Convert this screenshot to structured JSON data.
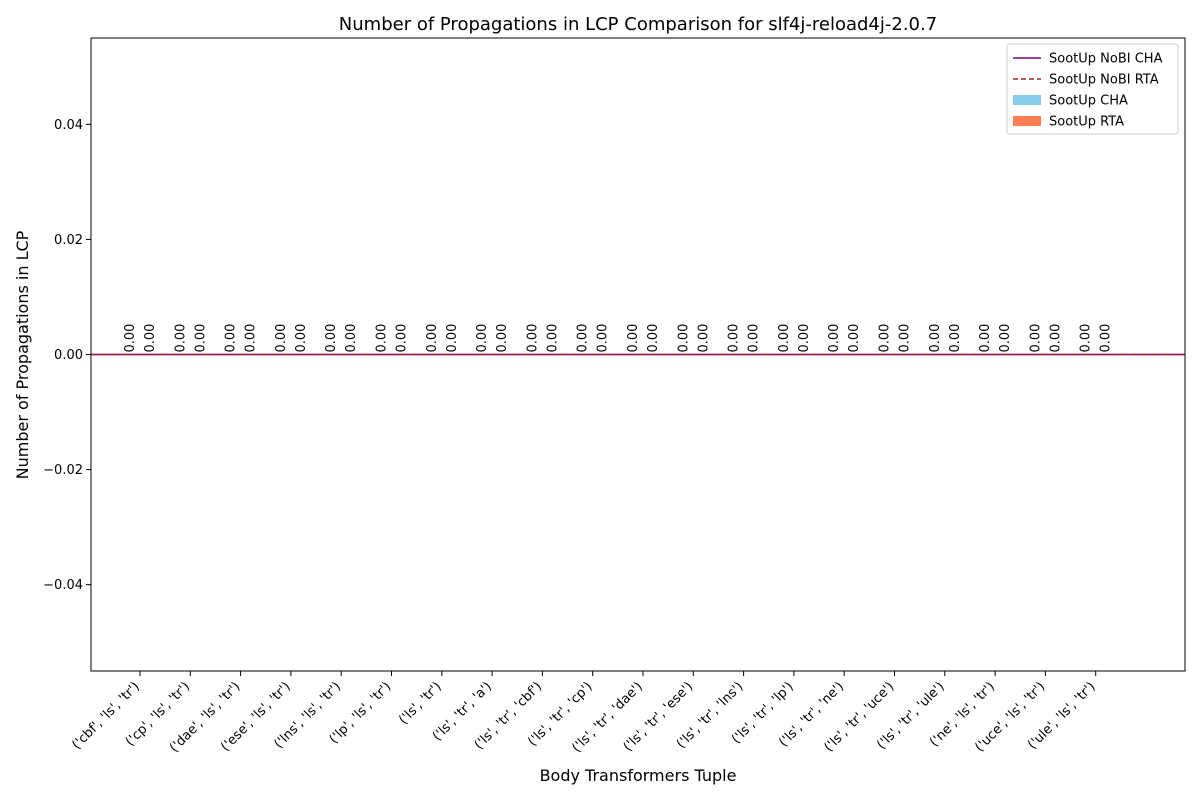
{
  "chart_data": {
    "type": "bar",
    "title": "Number of Propagations in LCP Comparison for slf4j-reload4j-2.0.7",
    "xlabel": "Body Transformers Tuple",
    "ylabel": "Number of Propagations in LCP",
    "ylim": [
      -0.055,
      0.055
    ],
    "yticks": [
      -0.04,
      -0.02,
      0.0,
      0.02,
      0.04
    ],
    "ytick_labels": [
      "−0.04",
      "−0.02",
      "0.00",
      "0.02",
      "0.04"
    ],
    "categories": [
      "('cbf', 'ls', 'tr')",
      "('cp', 'ls', 'tr')",
      "('dae', 'ls', 'tr')",
      "('ese', 'ls', 'tr')",
      "('lns', 'ls', 'tr')",
      "('lp', 'ls', 'tr')",
      "('ls', 'tr')",
      "('ls', 'tr', 'a')",
      "('ls', 'tr', 'cbf')",
      "('ls', 'tr', 'cp')",
      "('ls', 'tr', 'dae')",
      "('ls', 'tr', 'ese')",
      "('ls', 'tr', 'lns')",
      "('ls', 'tr', 'lp')",
      "('ls', 'tr', 'ne')",
      "('ls', 'tr', 'uce')",
      "('ls', 'tr', 'ule')",
      "('ne', 'ls', 'tr')",
      "('uce', 'ls', 'tr')",
      "('ule', 'ls', 'tr')"
    ],
    "series": [
      {
        "name": "SootUp CHA",
        "kind": "bar",
        "color": "#87ceeb",
        "values": [
          0,
          0,
          0,
          0,
          0,
          0,
          0,
          0,
          0,
          0,
          0,
          0,
          0,
          0,
          0,
          0,
          0,
          0,
          0,
          0
        ],
        "labels": [
          "0.00",
          "0.00",
          "0.00",
          "0.00",
          "0.00",
          "0.00",
          "0.00",
          "0.00",
          "0.00",
          "0.00",
          "0.00",
          "0.00",
          "0.00",
          "0.00",
          "0.00",
          "0.00",
          "0.00",
          "0.00",
          "0.00",
          "0.00"
        ]
      },
      {
        "name": "SootUp RTA",
        "kind": "bar",
        "color": "#ff7f50",
        "values": [
          0,
          0,
          0,
          0,
          0,
          0,
          0,
          0,
          0,
          0,
          0,
          0,
          0,
          0,
          0,
          0,
          0,
          0,
          0,
          0
        ],
        "labels": [
          "0.00",
          "0.00",
          "0.00",
          "0.00",
          "0.00",
          "0.00",
          "0.00",
          "0.00",
          "0.00",
          "0.00",
          "0.00",
          "0.00",
          "0.00",
          "0.00",
          "0.00",
          "0.00",
          "0.00",
          "0.00",
          "0.00",
          "0.00"
        ]
      },
      {
        "name": "SootUp NoBI CHA",
        "kind": "hline",
        "value": 0,
        "color": "#800080",
        "style": "solid"
      },
      {
        "name": "SootUp NoBI RTA",
        "kind": "hline",
        "value": 0,
        "color": "#b22222",
        "style": "dashed"
      }
    ],
    "legend_position": "top-right",
    "grid": false
  }
}
